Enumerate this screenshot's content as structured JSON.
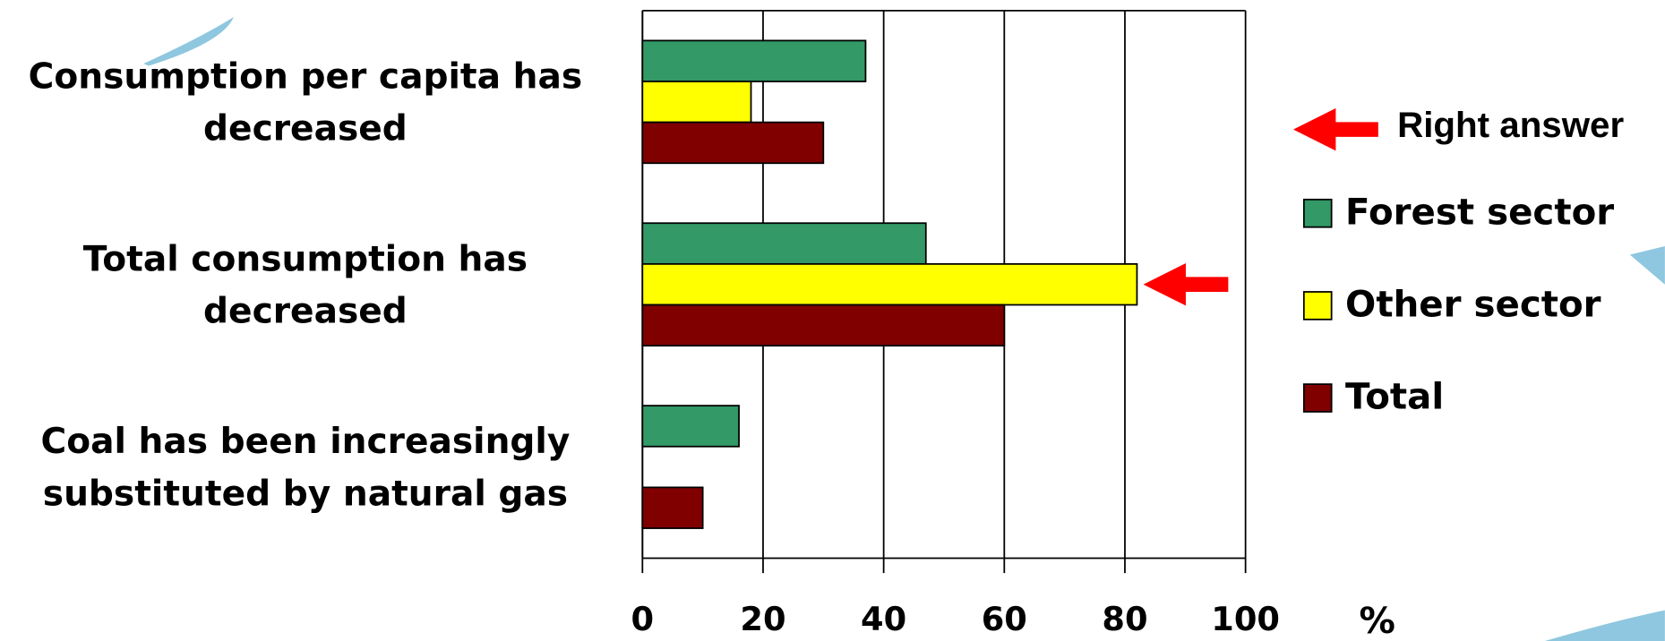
{
  "chart_data": {
    "type": "bar",
    "orientation": "horizontal",
    "categories": [
      "Consumption per capita has decreased",
      "Total consumption has decreased",
      "Coal has been increasingly substituted by natural gas"
    ],
    "series": [
      {
        "name": "Forest sector",
        "color": "#339966",
        "values": [
          37,
          47,
          16
        ]
      },
      {
        "name": "Other sector",
        "color": "#ffff00",
        "values": [
          18,
          82,
          null
        ]
      },
      {
        "name": "Total",
        "color": "#800000",
        "values": [
          30,
          60,
          10
        ]
      }
    ],
    "xlim": [
      0,
      100
    ],
    "xticks": [
      0,
      20,
      40,
      60,
      80,
      100
    ],
    "x_label": "%",
    "grid": true,
    "annotation": "Right answer",
    "legend": "right"
  }
}
